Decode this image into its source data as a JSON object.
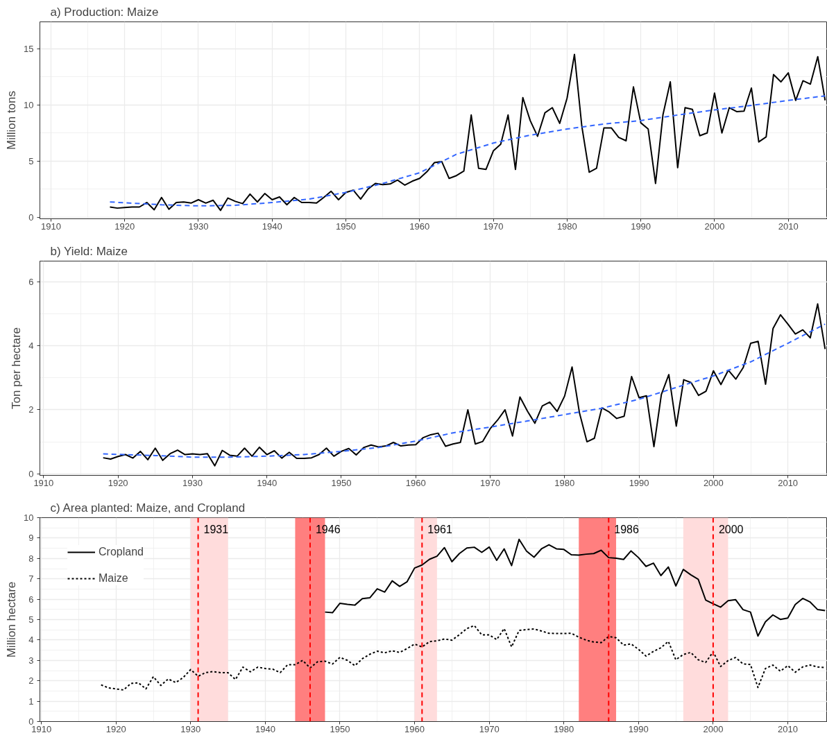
{
  "chart_data": [
    {
      "type": "line",
      "title": "a) Production: Maize",
      "ylabel": "Million tons",
      "xlim": [
        1908.5,
        2015.3
      ],
      "ylim": [
        -0.15,
        17.4
      ],
      "xticks": [
        1910,
        1920,
        1930,
        1940,
        1950,
        1960,
        1970,
        1980,
        1990,
        2000,
        2010
      ],
      "yticks": [
        0,
        5,
        10,
        15
      ],
      "grid": true,
      "x": [
        1918,
        1919,
        1920,
        1921,
        1922,
        1923,
        1924,
        1925,
        1926,
        1927,
        1928,
        1929,
        1930,
        1931,
        1932,
        1933,
        1934,
        1935,
        1936,
        1937,
        1938,
        1939,
        1940,
        1941,
        1942,
        1943,
        1944,
        1945,
        1946,
        1947,
        1948,
        1949,
        1950,
        1951,
        1952,
        1953,
        1954,
        1955,
        1956,
        1957,
        1958,
        1959,
        1960,
        1961,
        1962,
        1963,
        1964,
        1965,
        1966,
        1967,
        1968,
        1969,
        1970,
        1971,
        1972,
        1973,
        1974,
        1975,
        1976,
        1977,
        1978,
        1979,
        1980,
        1981,
        1982,
        1983,
        1984,
        1985,
        1986,
        1987,
        1988,
        1989,
        1990,
        1991,
        1992,
        1993,
        1994,
        1995,
        1996,
        1997,
        1998,
        1999,
        2000,
        2001,
        2002,
        2003,
        2004,
        2005,
        2006,
        2007,
        2008,
        2009,
        2010,
        2011,
        2012,
        2013,
        2014,
        2015
      ],
      "series": [
        {
          "color": "#000000",
          "line_style": "solid",
          "values": [
            0.9,
            0.8,
            0.85,
            0.9,
            0.9,
            1.3,
            0.65,
            1.75,
            0.7,
            1.3,
            1.35,
            1.25,
            1.55,
            1.25,
            1.5,
            0.6,
            1.7,
            1.4,
            1.2,
            2.05,
            1.35,
            2.1,
            1.55,
            1.8,
            1.1,
            1.75,
            1.3,
            1.3,
            1.25,
            1.75,
            2.3,
            1.55,
            2.2,
            2.4,
            1.6,
            2.5,
            3.0,
            2.9,
            2.95,
            3.3,
            2.85,
            3.2,
            3.45,
            4.05,
            4.85,
            4.95,
            3.45,
            3.7,
            4.1,
            9.1,
            4.35,
            4.25,
            5.9,
            6.5,
            9.1,
            4.25,
            10.65,
            8.6,
            7.2,
            9.3,
            9.75,
            8.35,
            10.6,
            14.5,
            8.1,
            4.0,
            4.35,
            7.95,
            7.95,
            7.1,
            6.8,
            11.6,
            8.4,
            7.85,
            3.0,
            9.1,
            12.05,
            4.4,
            9.75,
            9.6,
            7.25,
            7.5,
            11.05,
            7.5,
            9.75,
            9.4,
            9.45,
            11.5,
            6.7,
            7.15,
            12.7,
            12.05,
            12.85,
            10.4,
            12.15,
            11.85,
            14.3,
            10.4
          ]
        },
        {
          "type": "line",
          "color": "#3366ff",
          "line_style": "dashed",
          "x": [
            1918,
            1925,
            1930,
            1935,
            1940,
            1945,
            1950,
            1955,
            1960,
            1965,
            1970,
            1975,
            1980,
            1985,
            1990,
            1995,
            2000,
            2005,
            2010,
            2015
          ],
          "values": [
            1.35,
            1.1,
            1.0,
            1.05,
            1.3,
            1.6,
            2.2,
            3.0,
            3.95,
            5.6,
            6.6,
            7.3,
            7.85,
            8.3,
            8.6,
            9.1,
            9.55,
            9.95,
            10.4,
            10.8
          ]
        }
      ]
    },
    {
      "type": "line",
      "title": "b)  Yield: Maize",
      "ylabel": "Ton per hectare",
      "xlim": [
        1909.5,
        2015.3
      ],
      "ylim": [
        -0.05,
        6.65
      ],
      "xticks": [
        1910,
        1920,
        1930,
        1940,
        1950,
        1960,
        1970,
        1980,
        1990,
        2000,
        2010
      ],
      "yticks": [
        0,
        2,
        4,
        6
      ],
      "grid": true,
      "x": [
        1918,
        1919,
        1920,
        1921,
        1922,
        1923,
        1924,
        1925,
        1926,
        1927,
        1928,
        1929,
        1930,
        1931,
        1932,
        1933,
        1934,
        1935,
        1936,
        1937,
        1938,
        1939,
        1940,
        1941,
        1942,
        1943,
        1944,
        1945,
        1946,
        1947,
        1948,
        1949,
        1950,
        1951,
        1952,
        1953,
        1954,
        1955,
        1956,
        1957,
        1958,
        1959,
        1960,
        1961,
        1962,
        1963,
        1964,
        1965,
        1966,
        1967,
        1968,
        1969,
        1970,
        1971,
        1972,
        1973,
        1974,
        1975,
        1976,
        1977,
        1978,
        1979,
        1980,
        1981,
        1982,
        1983,
        1984,
        1985,
        1986,
        1987,
        1988,
        1989,
        1990,
        1991,
        1992,
        1993,
        1994,
        1995,
        1996,
        1997,
        1998,
        1999,
        2000,
        2001,
        2002,
        2003,
        2004,
        2005,
        2006,
        2007,
        2008,
        2009,
        2010,
        2011,
        2012,
        2013,
        2014,
        2015
      ],
      "series": [
        {
          "color": "#000000",
          "line_style": "solid",
          "values": [
            0.5,
            0.46,
            0.54,
            0.6,
            0.49,
            0.7,
            0.44,
            0.8,
            0.42,
            0.63,
            0.74,
            0.6,
            0.62,
            0.6,
            0.63,
            0.25,
            0.73,
            0.58,
            0.55,
            0.8,
            0.55,
            0.83,
            0.6,
            0.72,
            0.49,
            0.67,
            0.48,
            0.48,
            0.5,
            0.6,
            0.8,
            0.55,
            0.7,
            0.79,
            0.59,
            0.82,
            0.9,
            0.84,
            0.87,
            0.98,
            0.87,
            0.9,
            0.91,
            1.13,
            1.22,
            1.27,
            0.86,
            0.93,
            0.98,
            2.0,
            0.93,
            1.01,
            1.41,
            1.68,
            2.0,
            1.18,
            2.4,
            1.96,
            1.58,
            2.12,
            2.24,
            1.95,
            2.43,
            3.34,
            1.9,
            1.0,
            1.11,
            2.06,
            1.93,
            1.73,
            1.8,
            3.04,
            2.38,
            2.44,
            0.85,
            2.48,
            3.1,
            1.49,
            2.94,
            2.85,
            2.45,
            2.58,
            3.22,
            2.79,
            3.24,
            2.96,
            3.32,
            4.08,
            4.14,
            2.8,
            4.54,
            4.97,
            4.68,
            4.37,
            4.5,
            4.25,
            5.31,
            3.9
          ]
        },
        {
          "type": "line",
          "color": "#3366ff",
          "line_style": "dashed",
          "x": [
            1918,
            1925,
            1930,
            1935,
            1940,
            1945,
            1950,
            1955,
            1960,
            1965,
            1970,
            1975,
            1980,
            1985,
            1990,
            1995,
            2000,
            2005,
            2010,
            2015
          ],
          "values": [
            0.62,
            0.57,
            0.52,
            0.52,
            0.55,
            0.6,
            0.7,
            0.82,
            1.02,
            1.28,
            1.46,
            1.65,
            1.85,
            2.05,
            2.33,
            2.7,
            3.06,
            3.5,
            4.08,
            4.68
          ]
        }
      ]
    },
    {
      "type": "line",
      "title": "c) Area planted: Maize, and Cropland",
      "ylabel": "Million hectare",
      "xlim": [
        1909.8,
        2015.3
      ],
      "ylim": [
        0,
        10
      ],
      "xticks": [
        1910,
        1920,
        1930,
        1940,
        1950,
        1960,
        1970,
        1980,
        1990,
        2000,
        2010
      ],
      "yticks": [
        0,
        1,
        2,
        3,
        4,
        5,
        6,
        7,
        8,
        9,
        10
      ],
      "grid": true,
      "legend": "top left",
      "bands": [
        {
          "axis": "x",
          "from": 1930,
          "to": 1935,
          "color": "#ffdcdc"
        },
        {
          "axis": "x",
          "from": 1944,
          "to": 1948,
          "color": "#ff7f7f"
        },
        {
          "axis": "x",
          "from": 1960,
          "to": 1963,
          "color": "#ffdcdc"
        },
        {
          "axis": "x",
          "from": 1982,
          "to": 1987,
          "color": "#ff7f7f"
        },
        {
          "axis": "x",
          "from": 1996,
          "to": 2002,
          "color": "#ffdcdc"
        }
      ],
      "ref_lines": [
        {
          "axis": "x",
          "value": 1931,
          "label": "1931",
          "color": "#ff0000",
          "line_style": "dashed"
        },
        {
          "axis": "x",
          "value": 1946,
          "label": "1946",
          "color": "#ff0000",
          "line_style": "dashed"
        },
        {
          "axis": "x",
          "value": 1961,
          "label": "1961",
          "color": "#ff0000",
          "line_style": "dashed"
        },
        {
          "axis": "x",
          "value": 1986,
          "label": "1986",
          "color": "#ff0000",
          "line_style": "dashed"
        },
        {
          "axis": "x",
          "value": 2000,
          "label": "2000",
          "color": "#ff0000",
          "line_style": "dashed"
        }
      ],
      "x": [
        1918,
        1919,
        1920,
        1921,
        1922,
        1923,
        1924,
        1925,
        1926,
        1927,
        1928,
        1929,
        1930,
        1931,
        1932,
        1933,
        1934,
        1935,
        1936,
        1937,
        1938,
        1939,
        1940,
        1941,
        1942,
        1943,
        1944,
        1945,
        1946,
        1947,
        1948,
        1949,
        1950,
        1951,
        1952,
        1953,
        1954,
        1955,
        1956,
        1957,
        1958,
        1959,
        1960,
        1961,
        1962,
        1963,
        1964,
        1965,
        1966,
        1967,
        1968,
        1969,
        1970,
        1971,
        1972,
        1973,
        1974,
        1975,
        1976,
        1977,
        1978,
        1979,
        1980,
        1981,
        1982,
        1983,
        1984,
        1985,
        1986,
        1987,
        1988,
        1989,
        1990,
        1991,
        1992,
        1993,
        1994,
        1995,
        1996,
        1997,
        1998,
        1999,
        2000,
        2001,
        2002,
        2003,
        2004,
        2005,
        2006,
        2007,
        2008,
        2009,
        2010,
        2011,
        2012,
        2013,
        2014,
        2015
      ],
      "series": [
        {
          "name": "Cropland",
          "color": "#000000",
          "line_style": "solid",
          "x": [
            1948,
            1949,
            1950,
            1951,
            1952,
            1953,
            1954,
            1955,
            1956,
            1957,
            1958,
            1959,
            1960,
            1961,
            1962,
            1963,
            1964,
            1965,
            1966,
            1967,
            1968,
            1969,
            1970,
            1971,
            1972,
            1973,
            1974,
            1975,
            1976,
            1977,
            1978,
            1979,
            1980,
            1981,
            1982,
            1983,
            1984,
            1985,
            1986,
            1987,
            1988,
            1989,
            1990,
            1991,
            1992,
            1993,
            1994,
            1995,
            1996,
            1997,
            1998,
            1999,
            2000,
            2001,
            2002,
            2003,
            2004,
            2005,
            2006,
            2007,
            2008,
            2009,
            2010,
            2011,
            2012,
            2013,
            2014,
            2015
          ],
          "values": [
            5.37,
            5.34,
            5.8,
            5.75,
            5.71,
            6.03,
            6.07,
            6.51,
            6.35,
            6.9,
            6.63,
            6.86,
            7.53,
            7.68,
            7.96,
            8.11,
            8.53,
            7.84,
            8.24,
            8.51,
            8.55,
            8.3,
            8.56,
            7.91,
            8.47,
            7.65,
            8.94,
            8.36,
            8.06,
            8.47,
            8.67,
            8.47,
            8.44,
            8.18,
            8.16,
            8.21,
            8.24,
            8.4,
            8.04,
            8.01,
            7.95,
            8.37,
            8.04,
            7.61,
            7.77,
            7.16,
            7.58,
            6.65,
            7.46,
            7.2,
            6.98,
            5.96,
            5.78,
            5.61,
            5.93,
            5.98,
            5.49,
            5.37,
            4.19,
            4.89,
            5.23,
            5.01,
            5.08,
            5.74,
            6.04,
            5.86,
            5.49,
            5.44
          ]
        },
        {
          "name": "Maize",
          "color": "#000000",
          "line_style": "dotted",
          "values": [
            1.8,
            1.65,
            1.6,
            1.55,
            1.87,
            1.9,
            1.6,
            2.2,
            1.77,
            2.09,
            1.91,
            2.16,
            2.55,
            2.22,
            2.4,
            2.45,
            2.4,
            2.4,
            2.06,
            2.67,
            2.44,
            2.67,
            2.6,
            2.57,
            2.4,
            2.79,
            2.79,
            3.0,
            2.63,
            2.93,
            2.96,
            2.82,
            3.15,
            3.0,
            2.74,
            3.08,
            3.3,
            3.45,
            3.37,
            3.47,
            3.39,
            3.58,
            3.8,
            3.66,
            3.92,
            3.96,
            4.05,
            3.99,
            4.26,
            4.56,
            4.71,
            4.25,
            4.25,
            4.02,
            4.56,
            3.66,
            4.47,
            4.51,
            4.54,
            4.44,
            4.33,
            4.32,
            4.32,
            4.33,
            4.14,
            3.99,
            3.9,
            3.87,
            4.17,
            4.11,
            3.75,
            3.81,
            3.54,
            3.21,
            3.44,
            3.62,
            3.93,
            3.03,
            3.29,
            3.39,
            3.03,
            2.9,
            3.42,
            2.7,
            2.99,
            3.14,
            2.83,
            2.8,
            1.67,
            2.6,
            2.77,
            2.47,
            2.74,
            2.42,
            2.68,
            2.77,
            2.68,
            2.65
          ]
        }
      ]
    }
  ]
}
